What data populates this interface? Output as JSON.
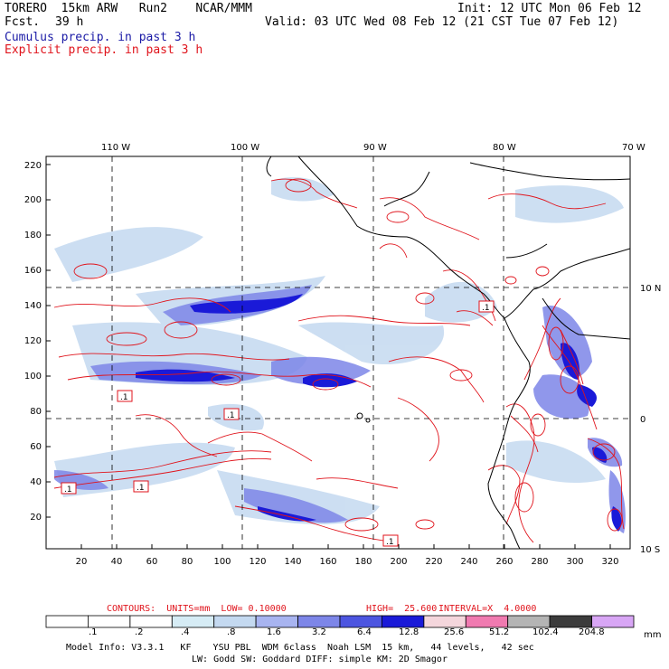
{
  "header": {
    "model_line": "TORERO  15km ARW   Run2    NCAR/MMM",
    "init_line": "Init: 12 UTC Mon 06 Feb 12",
    "fcst_label": "Fcst.",
    "fcst_value": "39 h",
    "valid_line": "Valid: 03 UTC Wed 08 Feb 12 (21 CST Tue 07 Feb 12)",
    "field1": "Cumulus precip. in past 3 h",
    "field2": "Explicit precip. in past 3 h"
  },
  "map": {
    "lon_labels": [
      "110 W",
      "100 W",
      "90 W",
      "80 W",
      "70 W"
    ],
    "lat_labels": [
      "10 N",
      "0",
      "10 S"
    ],
    "y_ticks": [
      "220",
      "200",
      "180",
      "160",
      "140",
      "120",
      "100",
      "80",
      "60",
      "40",
      "20"
    ],
    "x_ticks": [
      "20",
      "40",
      "60",
      "80",
      "100",
      "120",
      "140",
      "160",
      "180",
      "200",
      "220",
      "240",
      "260",
      "280",
      "300",
      "320"
    ],
    "low_markers": [
      ".1",
      ".1",
      ".1",
      ".1",
      ".1",
      ".1"
    ]
  },
  "contours_line": {
    "label": "CONTOURS:  UNITS=mm  LOW= 0.10000",
    "high": "HIGH=  25.600",
    "interval": "INTERVAL=X  4.0000"
  },
  "colorbar": {
    "labels": [
      ".1",
      ".2",
      ".4",
      ".8",
      "1.6",
      "3.2",
      "6.4",
      "12.8",
      "25.6",
      "51.2",
      "102.4",
      "204.8"
    ],
    "unit": "mm",
    "colors": [
      "#ffffff",
      "#ffffff",
      "#ffffff",
      "#d6ecf5",
      "#c4d9f0",
      "#a8b4f0",
      "#7d86e8",
      "#4c55e0",
      "#1a1ad8",
      "#f4d6dc",
      "#f07ab0",
      "#b4b4b4",
      "#3c3c3c",
      "#d8a6f5"
    ]
  },
  "footer": {
    "line1": "Model Info: V3.3.1   KF    YSU PBL  WDM 6class  Noah LSM  15 km,   44 levels,   42 sec",
    "line2": "LW: Godd SW: Goddard DIFF: simple KM: 2D Smagor"
  }
}
